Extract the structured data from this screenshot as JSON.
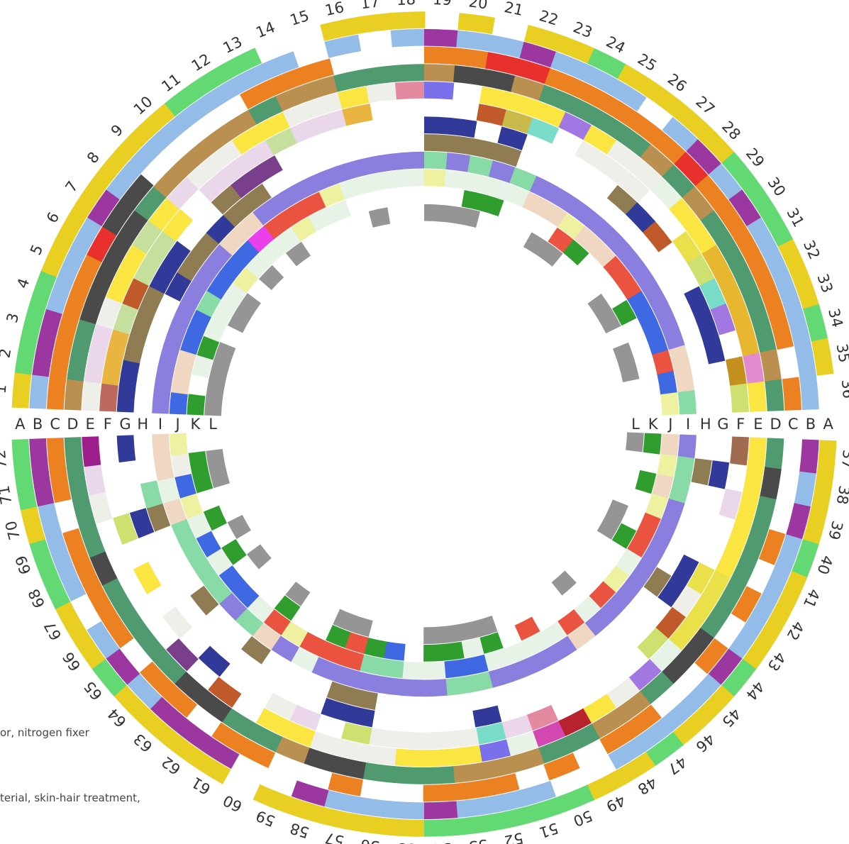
{
  "chart_data": {
    "type": "heatmap",
    "layout": "circular",
    "title": "",
    "rings": [
      "A",
      "B",
      "C",
      "D",
      "E",
      "F",
      "G",
      "H",
      "I",
      "J",
      "K",
      "L"
    ],
    "gap_after_sector": 36,
    "cells": [
      [
        "#e8cf22",
        "#93bde8",
        "#eb8120",
        "#b99050",
        "#efefea",
        "#bd6a5e",
        "#313a98",
        "",
        "#8a7fde",
        "#3e69e3",
        "#2f9e2e",
        "#959595"
      ],
      [
        "#62d972",
        "#9c379f",
        "#eb8120",
        "#4f9a6e",
        "#ead8ea",
        "#e9b43f",
        "#313a98",
        "",
        "#8a7fde",
        "#efd7c2",
        "",
        "#959595"
      ],
      [
        "#62d972",
        "#9c379f",
        "#eb8120",
        "#4f9a6e",
        "#ead8ea",
        "#e9b43f",
        "#8f7c52",
        "",
        "#8a7fde",
        "#efd7c2",
        "#e7f3e7",
        "#959595"
      ],
      [
        "#62d972",
        "#93bde8",
        "#eb8120",
        "#4a4a4a",
        "#efefea",
        "#c5e09c",
        "#8f7c52",
        "",
        "#8a7fde",
        "#3e69e3",
        "#2f9e2e",
        "#959595"
      ],
      [
        "#e8cf22",
        "#93bde8",
        "#eb8120",
        "#4a4a4a",
        "#fbe541",
        "#c05a2b",
        "#8f7c52",
        "",
        "#8a7fde",
        "#3e69e3",
        "#e7f3e7",
        ""
      ],
      [
        "#e8cf22",
        "#93bde8",
        "#e8302c",
        "#4a4a4a",
        "#fbe541",
        "#c5e09c",
        "#313a98",
        "#313a98",
        "#8a7fde",
        "#88dba7",
        "#e7f3e7",
        "#959595"
      ],
      [
        "#e8cf22",
        "#9c379f",
        "#4a4a4a",
        "#4a4a4a",
        "#c5e09c",
        "#c5e09c",
        "#313a98",
        "#8f7c52",
        "#8a7fde",
        "#3e69e3",
        "#e7f3e7",
        "#959595"
      ],
      [
        "#e8cf22",
        "#93bde8",
        "#4a4a4a",
        "#4f9a6e",
        "#fbe541",
        "#fbe541",
        "",
        "#8f7c52",
        "#8a7fde",
        "#3e69e3",
        "#eef2a0",
        ""
      ],
      [
        "#e8cf22",
        "#93bde8",
        "",
        "#b99050",
        "#ead8ea",
        "",
        "",
        "#313a98",
        "#efd7c2",
        "#3e69e3",
        "#e7f3e7",
        "#959595"
      ],
      [
        "#e8cf22",
        "#93bde8",
        "",
        "#b99050",
        "#efefea",
        "#ead8ea",
        "#8f7c52",
        "#8f7c52",
        "#efd7c2",
        "#e93fe8",
        "#e7f3e7",
        ""
      ],
      [
        "#62d972",
        "#93bde8",
        "",
        "#b99050",
        "#efefea",
        "#ead8ea",
        "#7a3f8a",
        "#8f7c52",
        "#8a7fde",
        "#e9533f",
        "#e7f3e7",
        "#959595"
      ],
      [
        "#62d972",
        "#93bde8",
        "",
        "#b99050",
        "#fbe541",
        "#ead8ea",
        "#7a3f8a",
        "",
        "#8a7fde",
        "#e9533f",
        "#eef2a0",
        ""
      ],
      [
        "#62d972",
        "#93bde8",
        "#eb8120",
        "#4f9a6e",
        "#fbe541",
        "#c5e09c",
        "",
        "",
        "#8a7fde",
        "#e9533f",
        "#e7f3e7",
        ""
      ],
      [
        "",
        "#93bde8",
        "#eb8120",
        "#b99050",
        "#efefea",
        "#ead8ea",
        "",
        "",
        "#8a7fde",
        "#eef2a0",
        "#e7f3e7",
        ""
      ],
      [
        "",
        "",
        "#eb8120",
        "#b99050",
        "#efefea",
        "#ead8ea",
        "",
        "",
        "#8a7fde",
        "#e7f3e7",
        "",
        ""
      ],
      [
        "#e8cf22",
        "#93bde8",
        "",
        "#4f9a6e",
        "#fbe541",
        "#e9b43f",
        "",
        "",
        "#8a7fde",
        "#e7f3e7",
        "",
        "#959595"
      ],
      [
        "#e8cf22",
        "",
        "",
        "#4f9a6e",
        "#efefea",
        "",
        "",
        "",
        "#8a7fde",
        "#e7f3e7",
        "",
        ""
      ],
      [
        "#e8cf22",
        "#93bde8",
        "",
        "#4f9a6e",
        "#e38aa0",
        "",
        "",
        "",
        "#8a7fde",
        "#e7f3e7",
        "",
        ""
      ],
      [
        "",
        "#9c379f",
        "#eb8120",
        "#b99050",
        "#7a70eb",
        "",
        "#313a98",
        "#8f7c52",
        "#88dba7",
        "#eef2a0",
        "",
        "#959595"
      ],
      [
        "#e8cf22",
        "#93bde8",
        "#eb8120",
        "#4a4a4a",
        "",
        "",
        "#313a98",
        "#8f7c52",
        "#8a7fde",
        "#e7f3e7",
        "",
        "#959595"
      ],
      [
        "",
        "#93bde8",
        "#e8302c",
        "#4a4a4a",
        "#fbe541",
        "#c05a2b",
        "",
        "#8f7c52",
        "#88dba7",
        "#e7f3e7",
        "#2f9e2e",
        "#959595"
      ],
      [
        "#e8cf22",
        "#9c379f",
        "#e8302c",
        "#b99050",
        "#fbe541",
        "#c9b84a",
        "#313a98",
        "#8f7c52",
        "#8a7fde",
        "#e7f3e7",
        "#2f9e2e",
        ""
      ],
      [
        "#e8cf22",
        "#93bde8",
        "#eb8120",
        "#4f9a6e",
        "#fbe541",
        "#78dcc8",
        "",
        "",
        "#88dba7",
        "#e7f3e7",
        "",
        ""
      ],
      [
        "#62d972",
        "#93bde8",
        "#eb8120",
        "#4f9a6e",
        "#a178e2",
        "",
        "",
        "",
        "#8a7fde",
        "#efd7c2",
        "",
        ""
      ],
      [
        "#e8cf22",
        "#93bde8",
        "#eb8120",
        "#4f9a6e",
        "#fbe541",
        "#efefea",
        "",
        "",
        "#8a7fde",
        "#efd7c2",
        "",
        "#959595"
      ],
      [
        "#e8cf22",
        "",
        "#eb8120",
        "#4f9a6e",
        "#efefea",
        "#efefea",
        "",
        "",
        "#8a7fde",
        "#eef2a0",
        "#e9533f",
        "#959595"
      ],
      [
        "#e8cf22",
        "#93bde8",
        "#eb8120",
        "#b99050",
        "#efefea",
        "#efefea",
        "#8f7c52",
        "",
        "#8a7fde",
        "#efd7c2",
        "#2f9e2e",
        ""
      ],
      [
        "#e8cf22",
        "#9c379f",
        "#e8302c",
        "#4f9a6e",
        "#e7f3e7",
        "",
        "#313a98",
        "",
        "#8a7fde",
        "#efd7c2",
        "",
        ""
      ],
      [
        "#62d972",
        "#93bde8",
        "#eb8120",
        "#b99050",
        "#fbe541",
        "",
        "#c05a2b",
        "",
        "#8a7fde",
        "#e9533f",
        "",
        ""
      ],
      [
        "#62d972",
        "#9c379f",
        "#eb8120",
        "#4f9a6e",
        "#fbe541",
        "#e9e04a",
        "",
        "",
        "#8a7fde",
        "#e9533f",
        "",
        "#959595"
      ],
      [
        "#62d972",
        "#93bde8",
        "#eb8120",
        "#4f9a6e",
        "#e6b72f",
        "#cde070",
        "",
        "",
        "#8a7fde",
        "#3e69e3",
        "#2f9e2e",
        "#959595"
      ],
      [
        "#e8cf22",
        "#93bde8",
        "#eb8120",
        "#4f9a6e",
        "#e6b72f",
        "#78dcc8",
        "#313a98",
        "",
        "#8a7fde",
        "#3e69e3",
        "",
        ""
      ],
      [
        "#e8cf22",
        "#93bde8",
        "#eb8120",
        "#4f9a6e",
        "#e6b72f",
        "#a178e2",
        "#313a98",
        "",
        "#8a7fde",
        "#3e69e3",
        "",
        "#959595"
      ],
      [
        "#62d972",
        "#93bde8",
        "#eb8120",
        "#4f9a6e",
        "#e6b72f",
        "",
        "#313a98",
        "",
        "#efd7c2",
        "#e9533f",
        "",
        "#959595"
      ],
      [
        "#e8cf22",
        "#93bde8",
        "",
        "#b99050",
        "#e38acf",
        "#c4901e",
        "",
        "",
        "#efd7c2",
        "#3e69e3",
        "",
        ""
      ],
      [
        "",
        "#93bde8",
        "#eb8120",
        "#4f9a6e",
        "#fbe541",
        "#cde070",
        "",
        "",
        "#88dba7",
        "#eef2a0",
        "",
        ""
      ],
      [
        "#e8cf22",
        "#9c379f",
        "",
        "#4f9a6e",
        "#fbe541",
        "#a06b50",
        "",
        "",
        "#8a7fde",
        "#efd7c2",
        "#2f9e2e",
        "#959595"
      ],
      [
        "#e8cf22",
        "#93bde8",
        "",
        "#4a4a4a",
        "#fbe541",
        "",
        "#313a98",
        "#8f7c52",
        "#88dba7",
        "#eef2a0",
        "",
        ""
      ],
      [
        "#e8cf22",
        "#9c379f",
        "",
        "#4f9a6e",
        "#fbe541",
        "#ead8ea",
        "",
        "",
        "#88dba7",
        "#efd7c2",
        "#2f9e2e",
        ""
      ],
      [
        "#62d972",
        "#93bde8",
        "#eb8120",
        "#4f9a6e",
        "#fbe541",
        "",
        "",
        "",
        "#8a7fde",
        "#eef2a0",
        "",
        ""
      ],
      [
        "#e8cf22",
        "#93bde8",
        "",
        "#4f9a6e",
        "#fbe541",
        "",
        "",
        "",
        "#8a7fde",
        "#e9533f",
        "",
        "#959595"
      ],
      [
        "#e8cf22",
        "#93bde8",
        "#eb8120",
        "#4f9a6e",
        "#e9e04a",
        "#e9e04a",
        "#313a98",
        "",
        "#8a7fde",
        "#e9533f",
        "#2f9e2e",
        "#959595"
      ],
      [
        "#e8cf22",
        "#93bde8",
        "",
        "#4f9a6e",
        "#e9e04a",
        "#efefea",
        "#313a98",
        "#8f7c52",
        "#8a7fde",
        "#e7f3e7",
        "",
        ""
      ],
      [
        "#62d972",
        "#9c379f",
        "#eb8120",
        "#4a4a4a",
        "#e9e04a",
        "#c05a2b",
        "",
        "",
        "#8a7fde",
        "#eef2a0",
        "",
        ""
      ],
      [
        "#e8cf22",
        "#93bde8",
        "",
        "#4a4a4a",
        "#e7f3e7",
        "#cde070",
        "",
        "",
        "#8a7fde",
        "#e9533f",
        "",
        ""
      ],
      [
        "#e8cf22",
        "#93bde8",
        "",
        "#4f9a6e",
        "#a178e2",
        "",
        "",
        "",
        "#8a7fde",
        "#e7f3e7",
        "",
        "#959595"
      ],
      [
        "#62d972",
        "#93bde8",
        "#eb8120",
        "#b99050",
        "#efefea",
        "",
        "",
        "",
        "#efd7c2",
        "#e9533f",
        "",
        ""
      ],
      [
        "#e8cf22",
        "#93bde8",
        "#eb8120",
        "#b99050",
        "#fbe541",
        "",
        "",
        "",
        "#8a7fde",
        "#e7f3e7",
        "",
        ""
      ],
      [
        "#e8cf22",
        "",
        "",
        "#4f9a6e",
        "#b8222e",
        "",
        "",
        "",
        "#8a7fde",
        "#e7f3e7",
        "#e9533f",
        ""
      ],
      [
        "#62d972",
        "",
        "#eb8120",
        "#4f9a6e",
        "#d247b0",
        "#e38aa0",
        "",
        "",
        "#8a7fde",
        "#e7f3e7",
        "",
        ""
      ],
      [
        "#62d972",
        "#93bde8",
        "",
        "#b99050",
        "#e7f3e7",
        "#ead8ea",
        "",
        "",
        "#8a7fde",
        "#e7f3e7",
        "#2f9e2e",
        "#959595"
      ],
      [
        "#62d972",
        "#93bde8",
        "#eb8120",
        "#b99050",
        "#7a70eb",
        "#78dcc8",
        "#313a98",
        "",
        "#88dba7",
        "#3e69e3",
        "#e7f3e7",
        "#959595"
      ],
      [
        "#62d972",
        "#93bde8",
        "#eb8120",
        "#b99050",
        "#fbe541",
        "#efefea",
        "",
        "",
        "#88dba7",
        "#3e69e3",
        "#2f9e2e",
        "#959595"
      ],
      [
        "#62d972",
        "#9c379f",
        "#eb8120",
        "#4f9a6e",
        "#fbe541",
        "#efefea",
        "",
        "",
        "#8a7fde",
        "#e7f3e7",
        "#2f9e2e",
        "#959595"
      ],
      [
        "#e8cf22",
        "#93bde8",
        "",
        "#4f9a6e",
        "#fbe541",
        "#efefea",
        "",
        "",
        "#8a7fde",
        "#e7f3e7",
        "",
        ""
      ],
      [
        "#e8cf22",
        "#93bde8",
        "",
        "#4f9a6e",
        "#efefea",
        "#efefea",
        "",
        "",
        "#8a7fde",
        "#88dba7",
        "#3e69e3",
        ""
      ],
      [
        "#e8cf22",
        "#93bde8",
        "#eb8120",
        "#4a4a4a",
        "#efefea",
        "#cde070",
        "#313a98",
        "#8f7c52",
        "#8a7fde",
        "#88dba7",
        "#2f9e2e",
        ""
      ],
      [
        "#e8cf22",
        "#9c379f",
        "",
        "#4a4a4a",
        "#efefea",
        "",
        "#313a98",
        "#8f7c52",
        "#8a7fde",
        "#e9533f",
        "#e9533f",
        "#959595"
      ],
      [
        "#e8cf22",
        "",
        "",
        "#b99050",
        "#fbe541",
        "#ead8ea",
        "",
        "",
        "#8a7fde",
        "#e9533f",
        "#2f9e2e",
        "#959595"
      ],
      [
        "",
        "",
        "#eb8120",
        "#4f9a6e",
        "#fbe541",
        "#efefea",
        "",
        "",
        "#e7f3e7",
        "#e9533f",
        "",
        ""
      ],
      [
        "#e8cf22",
        "#9c379f",
        "#eb8120",
        "#4f9a6e",
        "",
        "",
        "",
        "",
        "#8a7fde",
        "#eef2a0",
        "",
        ""
      ],
      [
        "#e8cf22",
        "#9c379f",
        "",
        "#4a4a4a",
        "#c05a2b",
        "",
        "",
        "#8f7c52",
        "#efd7c2",
        "#e9533f",
        "#2f9e2e",
        "#959595"
      ],
      [
        "#e8cf22",
        "#9c379f",
        "#eb8120",
        "#4a4a4a",
        "",
        "#313a98",
        "",
        "",
        "#88dba7",
        "#e7f3e7",
        "",
        ""
      ],
      [
        "#e8cf22",
        "#93bde8",
        "#eb8120",
        "#4f9a6e",
        "#7a3f8a",
        "",
        "",
        "",
        "#8a7fde",
        "#3e69e3",
        "",
        ""
      ],
      [
        "#62d972",
        "#9c379f",
        "",
        "#4f9a6e",
        "",
        "#efefea",
        "",
        "#8f7c52",
        "#88dba7",
        "#3e69e3",
        "",
        "#959595"
      ],
      [
        "#e8cf22",
        "#93bde8",
        "#eb8120",
        "#4f9a6e",
        "",
        "",
        "",
        "",
        "#88dba7",
        "#e7f3e7",
        "#2f9e2e",
        ""
      ],
      [
        "#e8cf22",
        "",
        "#eb8120",
        "#4f9a6e",
        "",
        "#fbe541",
        "",
        "",
        "#88dba7",
        "#3e69e3",
        "",
        "#959595"
      ],
      [
        "#62d972",
        "#93bde8",
        "#eb8120",
        "#4a4a4a",
        "",
        "",
        "",
        "",
        "#88dba7",
        "#e7f3e7",
        "#2f9e2e",
        ""
      ],
      [
        "#62d972",
        "#93bde8",
        "#eb8120",
        "#4f9a6e",
        "",
        "#cde070",
        "#313a98",
        "#8f7c52",
        "#efd7c2",
        "#eef2a0",
        "",
        ""
      ],
      [
        "#e8cf22",
        "#93bde8",
        "",
        "#4f9a6e",
        "#efefea",
        "",
        "",
        "#88dba7",
        "#e7f3e7",
        "#3e69e3",
        "#2f9e2e",
        "#959595"
      ],
      [
        "#62d972",
        "#9c379f",
        "#eb8120",
        "#4f9a6e",
        "#ead8ea",
        "",
        "",
        "",
        "#efd7c2",
        "#efefea",
        "#2f9e2e",
        "#959595"
      ],
      [
        "#62d972",
        "#9c379f",
        "#eb8120",
        "#4f9a6e",
        "#9c1f8c",
        "",
        "#313a98",
        "",
        "#efd7c2",
        "#eef2a0",
        "",
        ""
      ]
    ]
  },
  "notes": [
    "or, nitrogen fixer",
    "terial, skin-hair treatment,"
  ]
}
